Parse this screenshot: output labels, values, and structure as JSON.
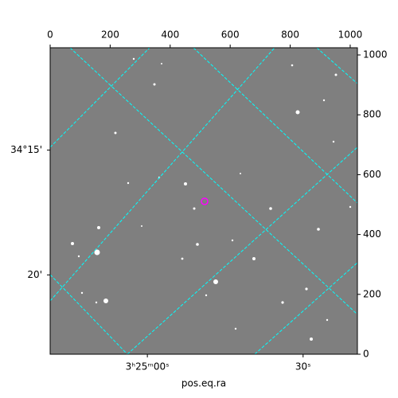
{
  "chart_data": {
    "type": "image",
    "xlabel": "pos.eq.ra",
    "xlim": [
      0,
      1024
    ],
    "xticks": [
      0,
      200,
      400,
      600,
      800,
      1000
    ],
    "ylim": [
      0,
      1024
    ],
    "yticks": [
      0,
      200,
      400,
      600,
      800,
      1000
    ],
    "ra_ticks": [
      {
        "value": 324,
        "label": "3ʰ25ᵐ00ˢ"
      },
      {
        "value": 843,
        "label": "30ˢ"
      }
    ],
    "dec_ticks": [
      {
        "value": 682,
        "label": "34°15'"
      },
      {
        "value": 265,
        "label": "20'"
      }
    ]
  }
}
